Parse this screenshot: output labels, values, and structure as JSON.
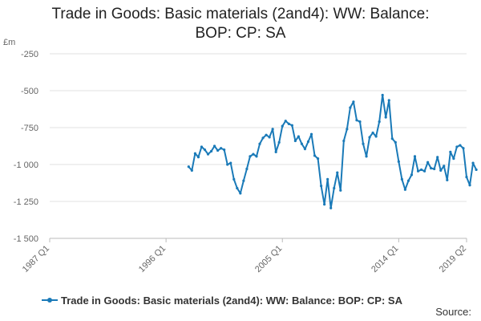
{
  "chart_data": {
    "type": "line",
    "title": "Trade in Goods: Basic materials (2and4): WW: Balance: BOP: CP: SA",
    "unit_label": "£m",
    "xlabel": "",
    "ylabel": "",
    "ylim": [
      -1500,
      -250
    ],
    "yticks": [
      -250,
      -500,
      -750,
      -1000,
      -1250,
      -1500
    ],
    "ytick_labels": [
      "-250",
      "-500",
      "-750",
      "-1 000",
      "-1 250",
      "-1 500"
    ],
    "xlim": [
      "1987 Q1",
      "2019 Q2"
    ],
    "xticks": [
      "1987 Q1",
      "1996 Q1",
      "2005 Q1",
      "2014 Q1",
      "2019 Q2"
    ],
    "grid": true,
    "legend_position": "bottom",
    "colors": {
      "series": "#1a7ab8",
      "grid": "#e2e2e2",
      "axis": "#bbbbbb"
    },
    "series": [
      {
        "name": "Trade in Goods: Basic materials (2and4): WW: Balance: BOP: CP: SA",
        "start": "1997 Q4",
        "values": [
          -1015,
          -1040,
          -925,
          -950,
          -880,
          -900,
          -930,
          -910,
          -875,
          -905,
          -890,
          -900,
          -1000,
          -990,
          -1100,
          -1160,
          -1195,
          -1110,
          -1030,
          -945,
          -930,
          -945,
          -860,
          -820,
          -800,
          -815,
          -760,
          -915,
          -850,
          -740,
          -705,
          -725,
          -735,
          -840,
          -810,
          -860,
          -895,
          -845,
          -795,
          -940,
          -960,
          -1145,
          -1270,
          -1100,
          -1295,
          -1160,
          -1055,
          -1175,
          -840,
          -760,
          -615,
          -575,
          -700,
          -710,
          -860,
          -945,
          -815,
          -785,
          -810,
          -710,
          -530,
          -680,
          -565,
          -825,
          -850,
          -980,
          -1100,
          -1170,
          -1110,
          -1070,
          -945,
          -1045,
          -1035,
          -1045,
          -985,
          -1025,
          -1030,
          -950,
          -1040,
          -1010,
          -1105,
          -915,
          -960,
          -880,
          -870,
          -890,
          -1085,
          -1140,
          -990,
          -1035
        ]
      }
    ]
  },
  "source_label": "Source:"
}
